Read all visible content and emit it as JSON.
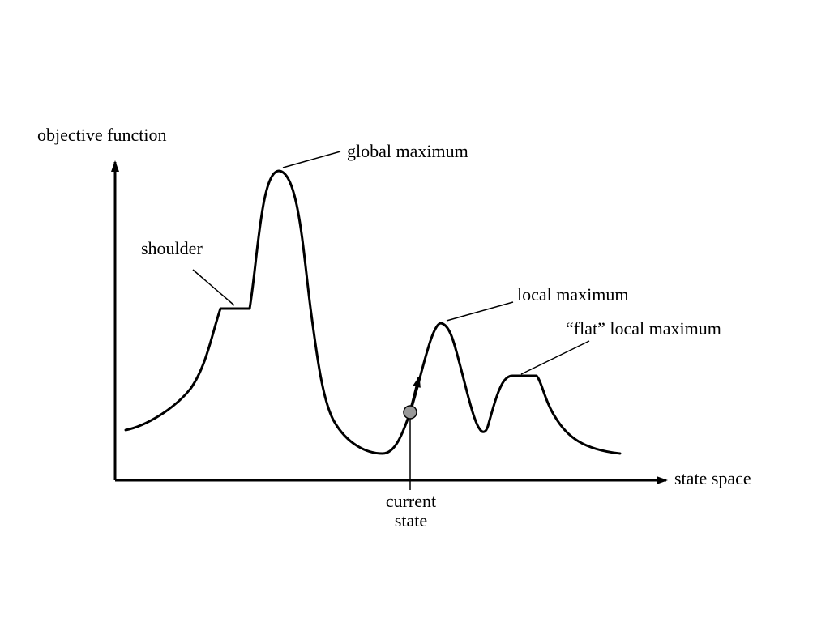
{
  "diagram": {
    "axes": {
      "y_label": "objective function",
      "x_label": "state space"
    },
    "annotations": {
      "global_maximum": "global maximum",
      "shoulder": "shoulder",
      "local_maximum": "local maximum",
      "flat_local_maximum": "“flat” local maximum",
      "current_state_line1": "current",
      "current_state_line2": "state"
    },
    "colors": {
      "stroke": "#000000",
      "current_state_marker": "#999999",
      "background": "#ffffff"
    }
  }
}
